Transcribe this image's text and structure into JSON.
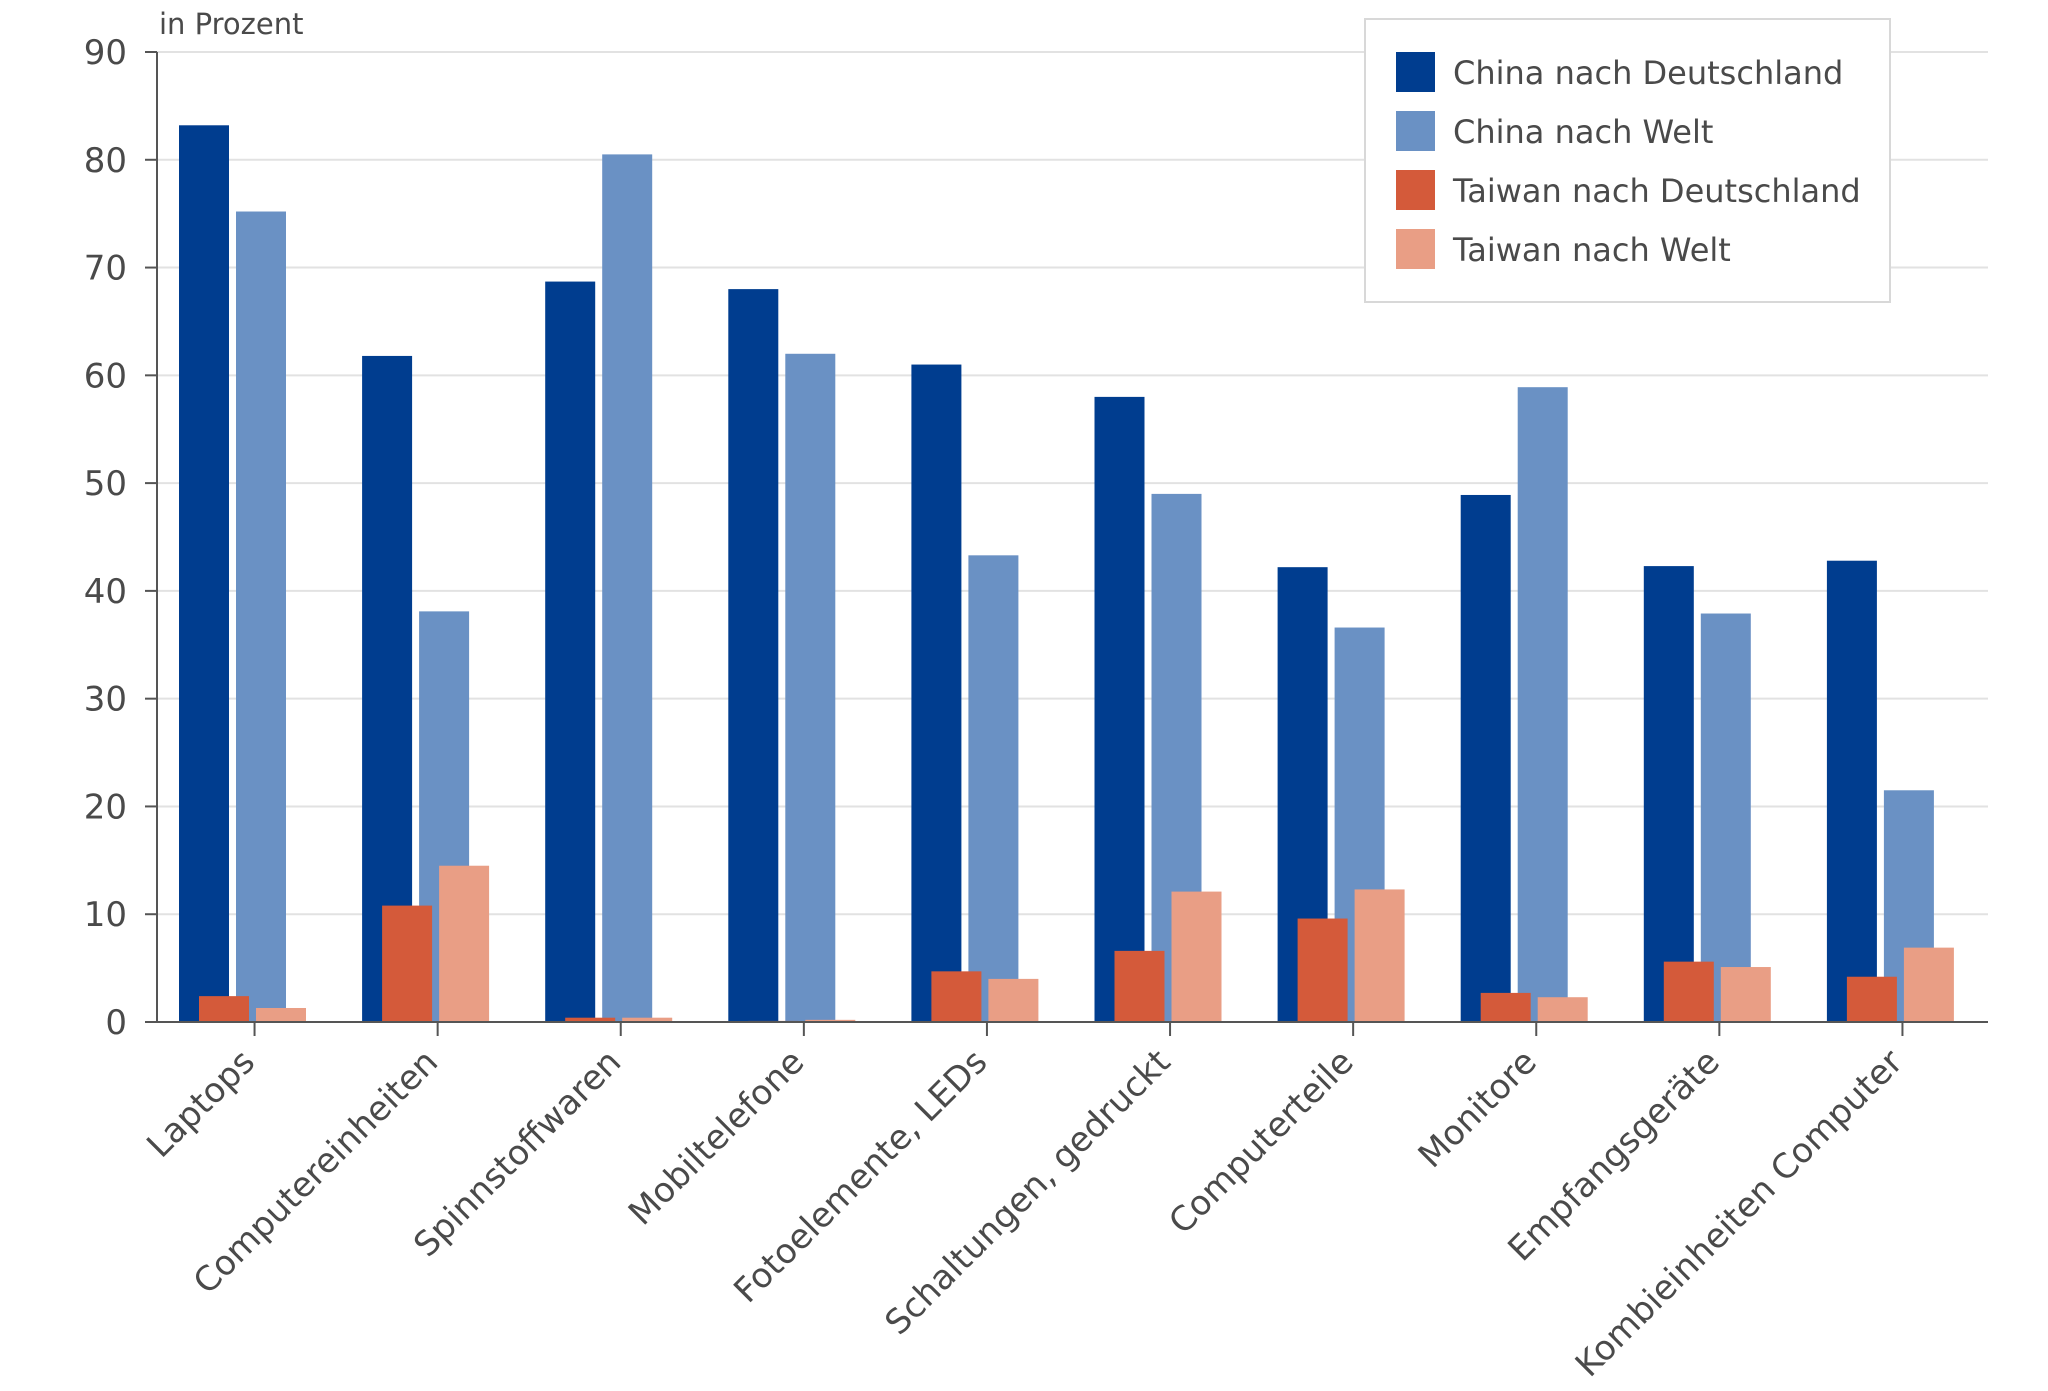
{
  "chart_data": {
    "type": "bar",
    "unit_label": "in Prozent",
    "categories": [
      "Laptops",
      "Computereinheiten",
      "Spinnstoffwaren",
      "Mobiltelefone",
      "Fotoelemente, LEDs",
      "Schaltungen, gedruckt",
      "Computerteile",
      "Monitore",
      "Empfangsgeräte",
      "Kombieinheiten Computer"
    ],
    "series": [
      {
        "name": "China nach Deutschland",
        "color": "#003d8f",
        "values": [
          83.2,
          61.8,
          68.7,
          68.0,
          61.0,
          58.0,
          42.2,
          48.9,
          42.3,
          42.8
        ]
      },
      {
        "name": "China nach Welt",
        "color": "#6a91c4",
        "values": [
          75.2,
          38.1,
          80.5,
          62.0,
          43.3,
          49.0,
          36.6,
          58.9,
          37.9,
          21.5
        ]
      },
      {
        "name": "Taiwan nach Deutschland",
        "color": "#d45a3a",
        "values": [
          2.4,
          10.8,
          0.4,
          0.1,
          4.7,
          6.6,
          9.6,
          2.7,
          5.6,
          4.2
        ]
      },
      {
        "name": "Taiwan nach Welt",
        "color": "#e99e85",
        "values": [
          1.3,
          14.5,
          0.4,
          0.2,
          4.0,
          12.1,
          12.3,
          2.3,
          5.1,
          6.9
        ]
      }
    ],
    "yticks": [
      0,
      10,
      20,
      30,
      40,
      50,
      60,
      70,
      80,
      90
    ],
    "ylim": [
      0,
      90
    ],
    "grid": true,
    "legend_position": "top-right"
  }
}
